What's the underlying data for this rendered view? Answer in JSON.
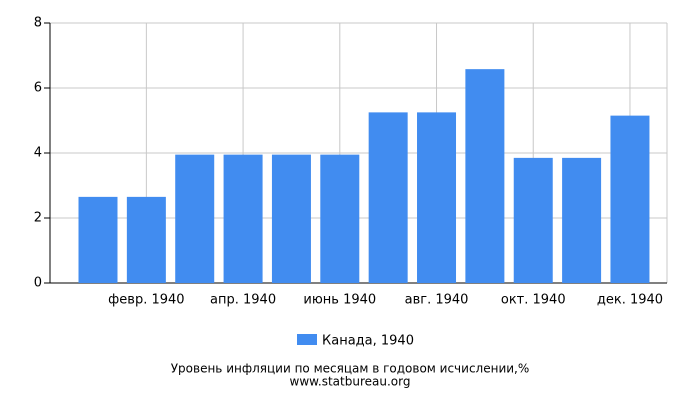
{
  "chart_data": {
    "type": "bar",
    "title": "Уровень инфляции по месяцам в годовом исчислении,%",
    "source": "www.statbureau.org",
    "categories": [
      null,
      "февр. 1940",
      null,
      "апр. 1940",
      null,
      "июнь 1940",
      null,
      "авг. 1940",
      null,
      "окт. 1940",
      null,
      "дек. 1940"
    ],
    "series": [
      {
        "name": "Канада, 1940",
        "color": "#418cf0",
        "values": [
          2.65,
          2.65,
          3.95,
          3.95,
          3.95,
          3.95,
          5.25,
          5.25,
          6.58,
          3.85,
          3.85,
          5.15
        ]
      }
    ],
    "ylim": [
      0,
      8
    ],
    "yticks": [
      0,
      2,
      4,
      6,
      8
    ],
    "grid": true
  }
}
